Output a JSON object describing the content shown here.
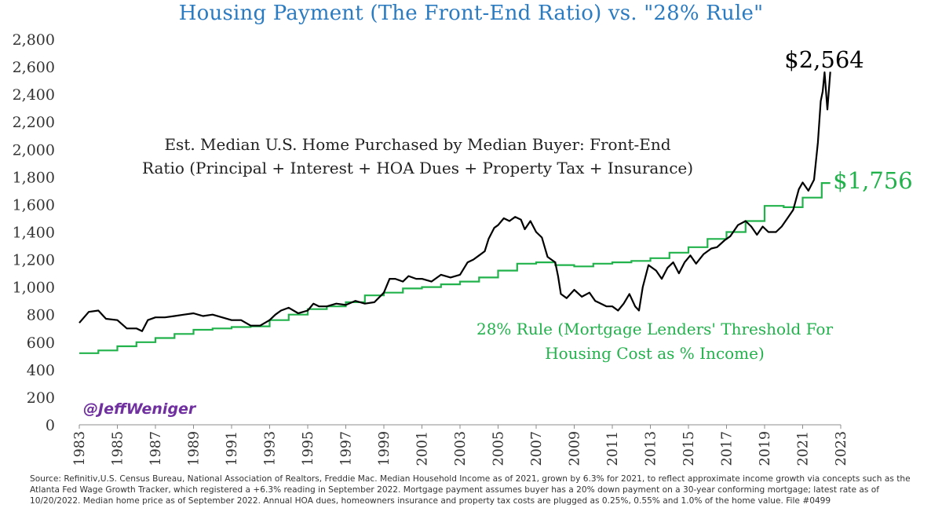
{
  "chart_data": {
    "type": "line",
    "title": "Housing Payment (The Front-End Ratio) vs. \"28% Rule\"",
    "xlabel": "",
    "ylabel": "",
    "xlim": [
      1983,
      2023
    ],
    "ylim": [
      0,
      2800
    ],
    "y_ticks": [
      "0",
      "200",
      "400",
      "600",
      "800",
      "1,000",
      "1,200",
      "1,400",
      "1,600",
      "1,800",
      "2,000",
      "2,200",
      "2,400",
      "2,600",
      "2,800"
    ],
    "x_ticks": [
      "1983",
      "1985",
      "1987",
      "1989",
      "1991",
      "1993",
      "1995",
      "1997",
      "1999",
      "2001",
      "2003",
      "2005",
      "2007",
      "2009",
      "2011",
      "2013",
      "2015",
      "2017",
      "2019",
      "2021",
      "2023"
    ],
    "grid": false,
    "series": [
      {
        "name": "Est. Median U.S. Home Purchased by Median Buyer: Front-End Ratio (Principal + Interest + HOA Dues + Property Tax + Insurance)",
        "color": "#000000",
        "points": [
          [
            1983.0,
            740
          ],
          [
            1983.5,
            820
          ],
          [
            1984.0,
            830
          ],
          [
            1984.4,
            770
          ],
          [
            1985.0,
            760
          ],
          [
            1985.5,
            700
          ],
          [
            1986.0,
            700
          ],
          [
            1986.3,
            680
          ],
          [
            1986.6,
            760
          ],
          [
            1987.0,
            780
          ],
          [
            1987.5,
            780
          ],
          [
            1988.0,
            790
          ],
          [
            1988.5,
            800
          ],
          [
            1989.0,
            810
          ],
          [
            1989.5,
            790
          ],
          [
            1990.0,
            800
          ],
          [
            1990.5,
            780
          ],
          [
            1991.0,
            760
          ],
          [
            1991.5,
            760
          ],
          [
            1992.0,
            720
          ],
          [
            1992.5,
            720
          ],
          [
            1993.0,
            760
          ],
          [
            1993.3,
            800
          ],
          [
            1993.6,
            830
          ],
          [
            1994.0,
            850
          ],
          [
            1994.5,
            810
          ],
          [
            1995.0,
            830
          ],
          [
            1995.3,
            880
          ],
          [
            1995.6,
            860
          ],
          [
            1996.0,
            860
          ],
          [
            1996.5,
            880
          ],
          [
            1997.0,
            870
          ],
          [
            1997.5,
            900
          ],
          [
            1998.0,
            880
          ],
          [
            1998.5,
            890
          ],
          [
            1999.0,
            960
          ],
          [
            1999.3,
            1060
          ],
          [
            1999.6,
            1060
          ],
          [
            2000.0,
            1040
          ],
          [
            2000.3,
            1080
          ],
          [
            2000.7,
            1060
          ],
          [
            2001.0,
            1060
          ],
          [
            2001.5,
            1040
          ],
          [
            2002.0,
            1090
          ],
          [
            2002.5,
            1070
          ],
          [
            2003.0,
            1090
          ],
          [
            2003.4,
            1180
          ],
          [
            2003.7,
            1200
          ],
          [
            2004.0,
            1230
          ],
          [
            2004.3,
            1260
          ],
          [
            2004.5,
            1350
          ],
          [
            2004.8,
            1430
          ],
          [
            2005.0,
            1450
          ],
          [
            2005.3,
            1500
          ],
          [
            2005.6,
            1480
          ],
          [
            2005.9,
            1510
          ],
          [
            2006.2,
            1490
          ],
          [
            2006.4,
            1420
          ],
          [
            2006.7,
            1480
          ],
          [
            2007.0,
            1400
          ],
          [
            2007.3,
            1360
          ],
          [
            2007.6,
            1220
          ],
          [
            2008.0,
            1180
          ],
          [
            2008.15,
            1080
          ],
          [
            2008.3,
            950
          ],
          [
            2008.6,
            920
          ],
          [
            2009.0,
            980
          ],
          [
            2009.4,
            930
          ],
          [
            2009.8,
            960
          ],
          [
            2010.1,
            900
          ],
          [
            2010.4,
            880
          ],
          [
            2010.7,
            860
          ],
          [
            2011.0,
            860
          ],
          [
            2011.3,
            830
          ],
          [
            2011.6,
            880
          ],
          [
            2011.9,
            950
          ],
          [
            2012.2,
            860
          ],
          [
            2012.4,
            830
          ],
          [
            2012.6,
            1000
          ],
          [
            2012.9,
            1160
          ],
          [
            2013.3,
            1120
          ],
          [
            2013.6,
            1060
          ],
          [
            2013.9,
            1140
          ],
          [
            2014.2,
            1180
          ],
          [
            2014.5,
            1100
          ],
          [
            2014.8,
            1180
          ],
          [
            2015.1,
            1230
          ],
          [
            2015.4,
            1170
          ],
          [
            2015.8,
            1240
          ],
          [
            2016.2,
            1280
          ],
          [
            2016.5,
            1290
          ],
          [
            2016.9,
            1340
          ],
          [
            2017.2,
            1370
          ],
          [
            2017.6,
            1450
          ],
          [
            2018.0,
            1480
          ],
          [
            2018.3,
            1440
          ],
          [
            2018.6,
            1380
          ],
          [
            2018.9,
            1440
          ],
          [
            2019.2,
            1400
          ],
          [
            2019.6,
            1400
          ],
          [
            2019.9,
            1440
          ],
          [
            2020.2,
            1500
          ],
          [
            2020.5,
            1560
          ],
          [
            2020.8,
            1710
          ],
          [
            2021.0,
            1760
          ],
          [
            2021.3,
            1700
          ],
          [
            2021.6,
            1780
          ],
          [
            2021.8,
            2050
          ],
          [
            2021.95,
            2350
          ],
          [
            2022.05,
            2420
          ],
          [
            2022.15,
            2560
          ],
          [
            2022.3,
            2290
          ],
          [
            2022.45,
            2564
          ]
        ]
      },
      {
        "name": "28% Rule (Mortgage Lenders' Threshold For Housing Cost as % Income)",
        "color": "#22b24c",
        "step_points": [
          [
            1983,
            520
          ],
          [
            1984,
            540
          ],
          [
            1985,
            570
          ],
          [
            1986,
            600
          ],
          [
            1987,
            630
          ],
          [
            1988,
            660
          ],
          [
            1989,
            690
          ],
          [
            1990,
            700
          ],
          [
            1991,
            710
          ],
          [
            1992,
            715
          ],
          [
            1993,
            760
          ],
          [
            1994,
            800
          ],
          [
            1995,
            840
          ],
          [
            1996,
            860
          ],
          [
            1997,
            890
          ],
          [
            1998,
            940
          ],
          [
            1999,
            960
          ],
          [
            2000,
            990
          ],
          [
            2001,
            1000
          ],
          [
            2002,
            1020
          ],
          [
            2003,
            1040
          ],
          [
            2004,
            1070
          ],
          [
            2005,
            1120
          ],
          [
            2006,
            1170
          ],
          [
            2007,
            1180
          ],
          [
            2008,
            1160
          ],
          [
            2009,
            1150
          ],
          [
            2010,
            1170
          ],
          [
            2011,
            1180
          ],
          [
            2012,
            1190
          ],
          [
            2013,
            1210
          ],
          [
            2014,
            1250
          ],
          [
            2015,
            1290
          ],
          [
            2016,
            1350
          ],
          [
            2017,
            1400
          ],
          [
            2018,
            1480
          ],
          [
            2019,
            1590
          ],
          [
            2020,
            1580
          ],
          [
            2021,
            1650
          ],
          [
            2022,
            1756
          ],
          [
            2022.45,
            1756
          ]
        ]
      }
    ],
    "annotations": {
      "series_label": [
        "Est. Median U.S. Home Purchased by Median Buyer: Front-End",
        "Ratio (Principal + Interest + HOA Dues + Property Tax + Insurance)"
      ],
      "rule_label": [
        "28% Rule (Mortgage Lenders' Threshold For",
        "Housing Cost as % Income)"
      ],
      "last_value_black": "$2,564",
      "last_value_green": "$1,756",
      "handle": "@JeffWeniger"
    }
  },
  "source_note": "Source: Refinitiv,U.S. Census Bureau, National Association of Realtors, Freddie Mac. Median Household Income as of 2021, grown by 6.3% for 2021, to reflect approximate income growth via concepts such as the Atlanta Fed Wage Growth Tracker, which registered a +6.3% reading in September 2022. Mortgage payment assumes buyer has a 20% down payment on a 30-year conforming mortgage; latest rate as of 10/20/2022. Median home price as of September 2022. Annual HOA dues, homeowners insurance and property tax costs are plugged as 0.25%, 0.55% and 1.0% of the home value. File #0499"
}
